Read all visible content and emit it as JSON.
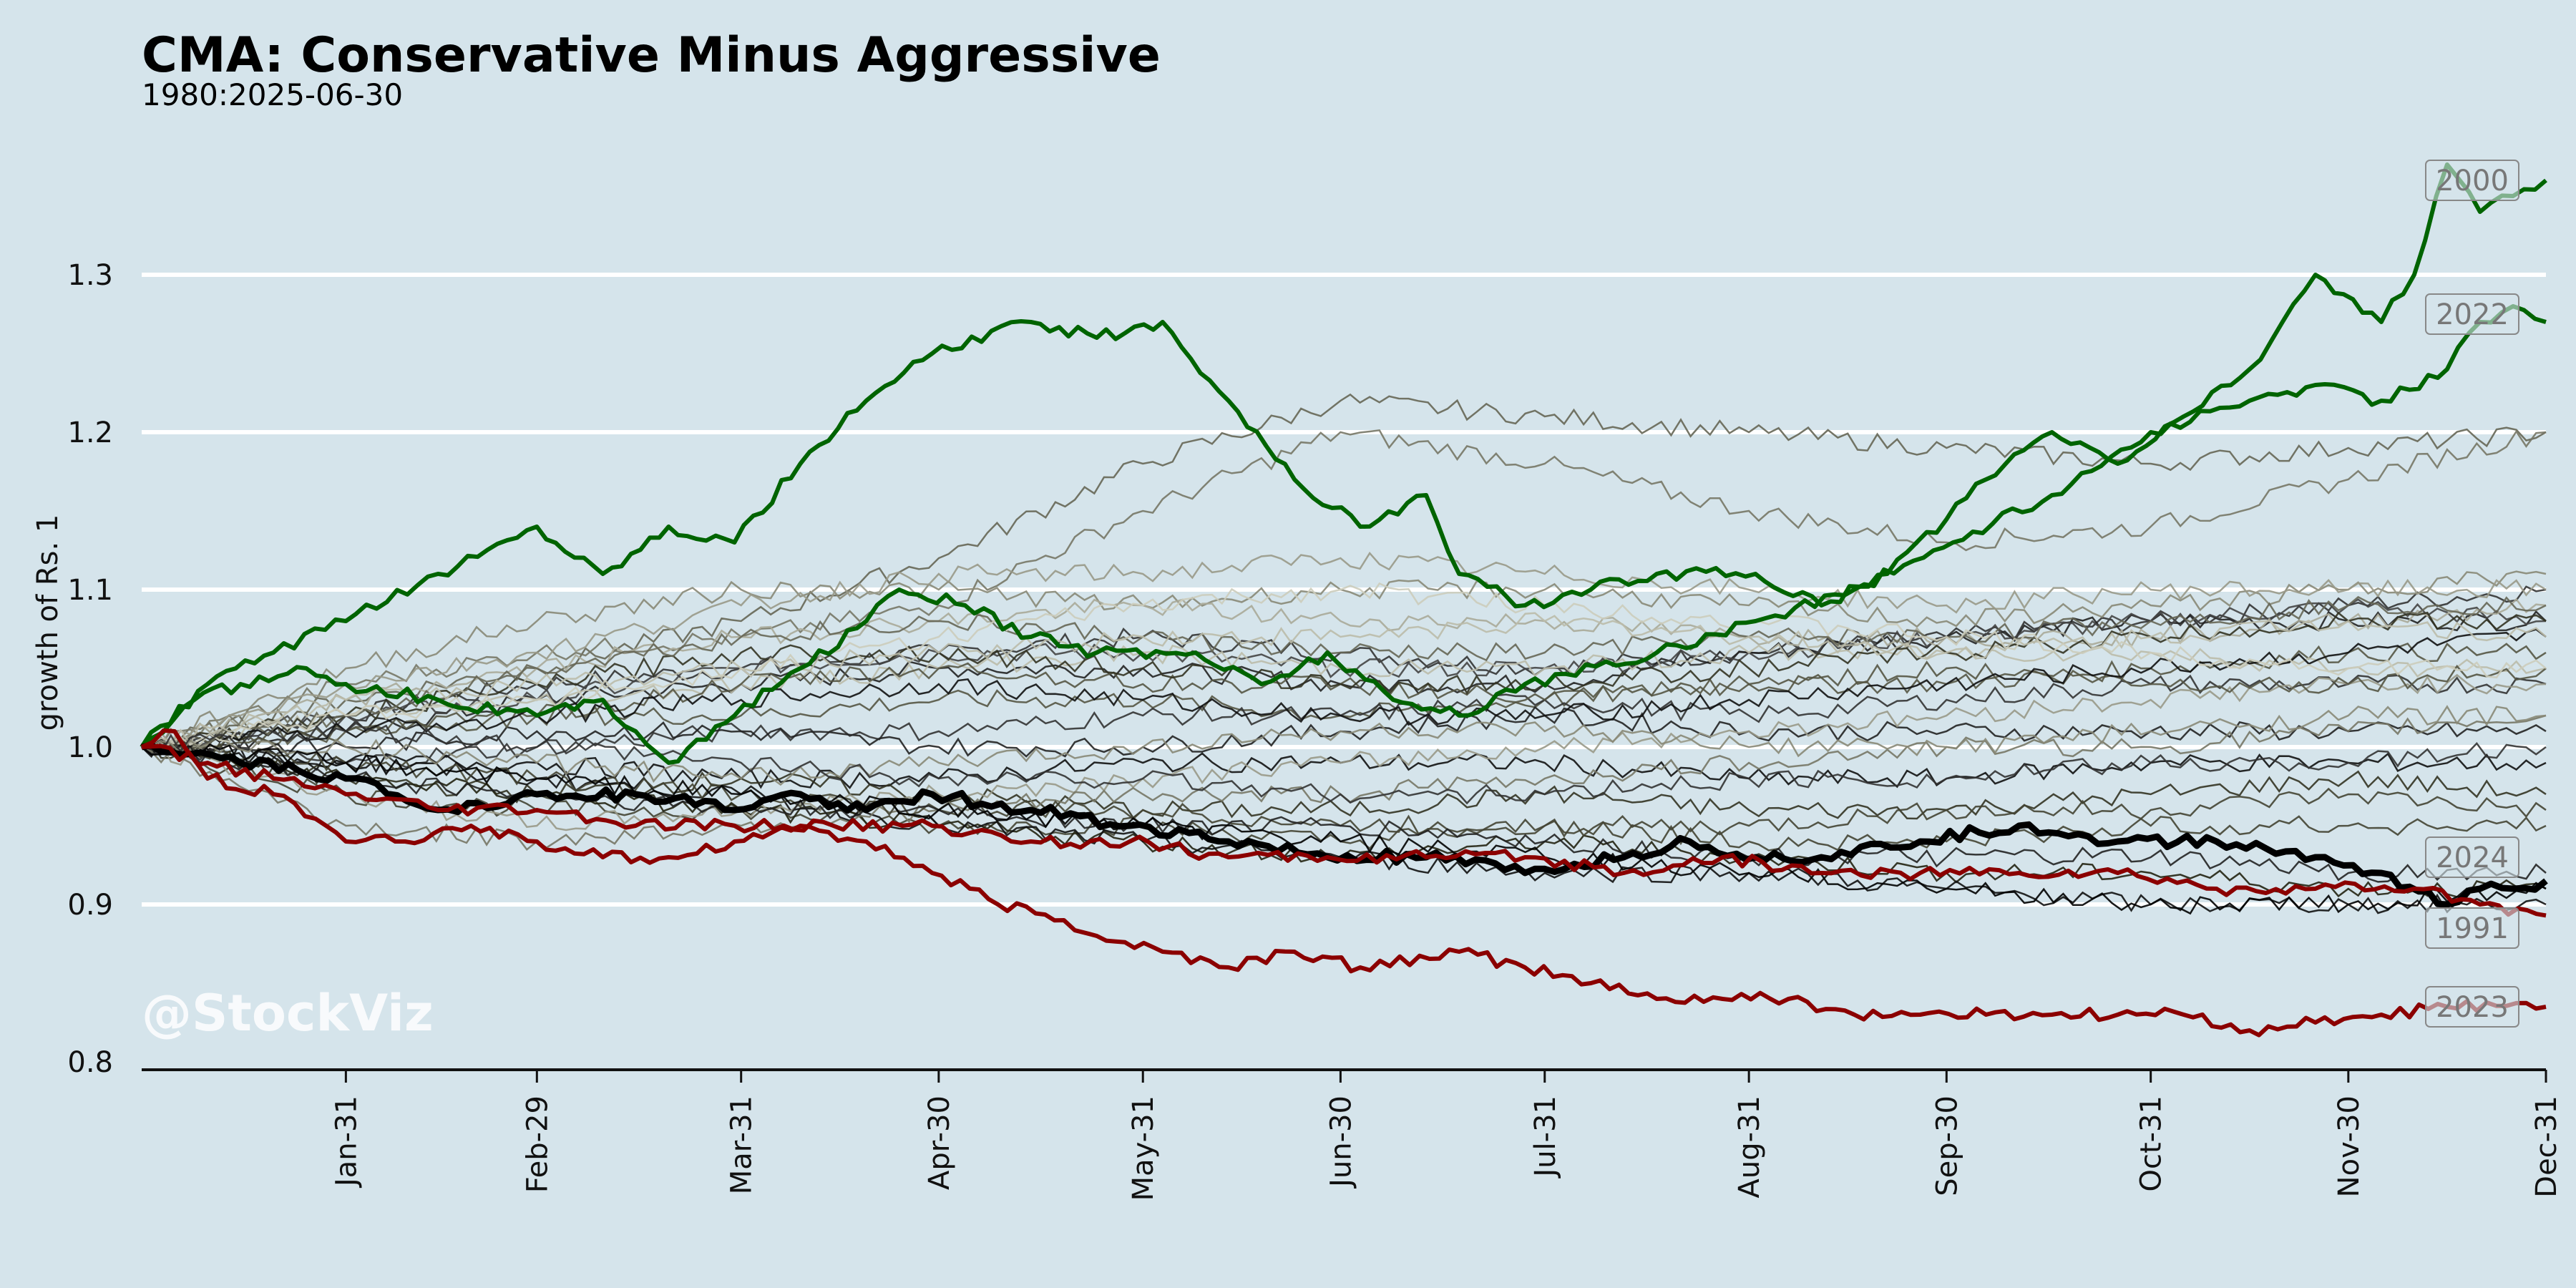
{
  "chart_data": {
    "type": "line",
    "title": "CMA: Conservative Minus Aggressive",
    "subtitle": "1980:2025-06-30",
    "xlabel": "",
    "ylabel": "growth of Rs. 1",
    "x_ticks": [
      "Jan-31",
      "Feb-29",
      "Mar-31",
      "Apr-30",
      "May-31",
      "Jun-30",
      "Jul-31",
      "Aug-31",
      "Sep-30",
      "Oct-31",
      "Nov-30",
      "Dec-31"
    ],
    "y_ticks": [
      "0.8",
      "0.9",
      "1.0",
      "1.1",
      "1.2",
      "1.3"
    ],
    "ylim": [
      0.795,
      1.37
    ],
    "xlim": [
      0,
      365
    ],
    "grid": "horizontal",
    "watermark": "@StockViz",
    "highlighted_series": [
      {
        "name": "2000",
        "color": "#006400",
        "label_y": 1.36,
        "x": [
          0,
          10,
          20,
          31,
          45,
          60,
          70,
          80,
          90,
          100,
          110,
          120,
          135,
          145,
          155,
          165,
          175,
          185,
          195,
          200,
          210,
          220,
          230,
          245,
          255,
          265,
          280,
          290,
          300,
          310,
          320,
          325,
          330,
          340,
          345,
          350,
          355,
          360,
          365
        ],
        "y": [
          1.0,
          1.04,
          1.06,
          1.08,
          1.11,
          1.14,
          1.11,
          1.14,
          1.13,
          1.18,
          1.22,
          1.25,
          1.27,
          1.26,
          1.27,
          1.22,
          1.17,
          1.14,
          1.16,
          1.11,
          1.09,
          1.1,
          1.11,
          1.11,
          1.09,
          1.11,
          1.17,
          1.2,
          1.18,
          1.21,
          1.24,
          1.27,
          1.3,
          1.27,
          1.3,
          1.37,
          1.34,
          1.35,
          1.36
        ]
      },
      {
        "name": "2022",
        "color": "#006400",
        "label_y": 1.275,
        "x": [
          0,
          8,
          15,
          25,
          31,
          45,
          60,
          70,
          75,
          80,
          90,
          100,
          110,
          115,
          125,
          135,
          145,
          160,
          170,
          180,
          190,
          200,
          210,
          230,
          245,
          260,
          275,
          290,
          305,
          320,
          330,
          340,
          350,
          355,
          360,
          365
        ],
        "y": [
          1.0,
          1.03,
          1.04,
          1.05,
          1.04,
          1.03,
          1.02,
          1.03,
          1.01,
          0.99,
          1.02,
          1.05,
          1.08,
          1.1,
          1.09,
          1.07,
          1.06,
          1.06,
          1.04,
          1.06,
          1.03,
          1.02,
          1.04,
          1.06,
          1.08,
          1.1,
          1.13,
          1.16,
          1.2,
          1.22,
          1.23,
          1.22,
          1.24,
          1.27,
          1.28,
          1.27
        ]
      },
      {
        "name": "2024",
        "color": "#000000",
        "label_y": 0.93,
        "x": [
          0,
          15,
          31,
          45,
          60,
          75,
          90,
          100,
          110,
          120,
          135,
          150,
          165,
          180,
          195,
          210,
          225,
          235,
          245,
          255,
          270,
          285,
          300,
          315,
          330,
          340,
          350,
          355,
          360,
          365
        ],
        "y": [
          1.0,
          0.99,
          0.98,
          0.96,
          0.97,
          0.97,
          0.96,
          0.97,
          0.96,
          0.97,
          0.96,
          0.95,
          0.94,
          0.93,
          0.93,
          0.92,
          0.93,
          0.94,
          0.93,
          0.93,
          0.94,
          0.95,
          0.94,
          0.94,
          0.93,
          0.92,
          0.9,
          0.91,
          0.91,
          0.915
        ]
      },
      {
        "name": "1991",
        "color": "#8b0000",
        "label_y": 0.885,
        "x": [
          0,
          10,
          20,
          31,
          45,
          60,
          75,
          90,
          105,
          120,
          135,
          150,
          165,
          180,
          195,
          210,
          225,
          240,
          255,
          270,
          285,
          300,
          315,
          330,
          345,
          355,
          365
        ],
        "y": [
          1.0,
          0.99,
          0.98,
          0.97,
          0.96,
          0.96,
          0.95,
          0.95,
          0.95,
          0.95,
          0.94,
          0.94,
          0.93,
          0.93,
          0.93,
          0.93,
          0.92,
          0.93,
          0.92,
          0.92,
          0.92,
          0.92,
          0.91,
          0.91,
          0.91,
          0.9,
          0.893
        ]
      },
      {
        "name": "2023",
        "color": "#8b0000",
        "label_y": 0.835,
        "x": [
          0,
          5,
          10,
          20,
          28,
          31,
          40,
          50,
          60,
          70,
          80,
          90,
          100,
          110,
          120,
          130,
          140,
          145,
          155,
          165,
          175,
          185,
          200,
          210,
          220,
          230,
          240,
          250,
          260,
          270,
          280,
          290,
          300,
          310,
          320,
          330,
          340,
          350,
          365
        ],
        "y": [
          1.0,
          1.01,
          0.98,
          0.97,
          0.95,
          0.94,
          0.94,
          0.95,
          0.94,
          0.93,
          0.93,
          0.94,
          0.95,
          0.94,
          0.92,
          0.9,
          0.89,
          0.88,
          0.87,
          0.86,
          0.87,
          0.86,
          0.87,
          0.86,
          0.85,
          0.84,
          0.84,
          0.84,
          0.83,
          0.83,
          0.83,
          0.83,
          0.83,
          0.83,
          0.82,
          0.825,
          0.83,
          0.835,
          0.835
        ]
      }
    ],
    "background_series": [
      {
        "color": "#333333",
        "y": [
          1.0,
          1.02,
          1.04,
          1.05,
          1.06,
          1.07,
          1.06,
          1.05,
          1.06,
          1.07,
          1.08,
          1.09,
          1.1
        ]
      },
      {
        "color": "#222222",
        "y": [
          1.0,
          1.01,
          1.03,
          1.04,
          1.05,
          1.05,
          1.04,
          1.04,
          1.06,
          1.07,
          1.08,
          1.08,
          1.08
        ]
      },
      {
        "color": "#444444",
        "y": [
          1.0,
          1.02,
          1.03,
          1.05,
          1.06,
          1.06,
          1.05,
          1.05,
          1.06,
          1.07,
          1.08,
          1.09,
          1.08
        ]
      },
      {
        "color": "#666655",
        "y": [
          1.0,
          1.03,
          1.05,
          1.08,
          1.12,
          1.18,
          1.22,
          1.21,
          1.2,
          1.19,
          1.18,
          1.19,
          1.2
        ]
      },
      {
        "color": "#777766",
        "y": [
          1.0,
          1.04,
          1.06,
          1.07,
          1.09,
          1.15,
          1.2,
          1.18,
          1.15,
          1.13,
          1.14,
          1.17,
          1.2
        ]
      },
      {
        "color": "#555544",
        "y": [
          1.0,
          1.01,
          1.02,
          1.02,
          1.03,
          1.03,
          1.02,
          1.03,
          1.04,
          1.04,
          1.05,
          1.06,
          1.06
        ]
      },
      {
        "color": "#333333",
        "y": [
          1.0,
          0.99,
          1.0,
          1.01,
          1.01,
          1.02,
          1.02,
          1.03,
          1.02,
          1.03,
          1.04,
          1.04,
          1.04
        ]
      },
      {
        "color": "#222222",
        "y": [
          1.0,
          1.0,
          1.01,
          1.01,
          1.0,
          1.0,
          1.01,
          1.02,
          1.01,
          1.01,
          1.01,
          1.01,
          1.01
        ]
      },
      {
        "color": "#111111",
        "y": [
          1.0,
          0.99,
          0.99,
          0.98,
          0.98,
          0.99,
          0.99,
          0.99,
          0.98,
          0.98,
          0.99,
          0.99,
          0.99
        ]
      },
      {
        "color": "#333322",
        "y": [
          1.0,
          0.98,
          0.97,
          0.98,
          0.97,
          0.96,
          0.96,
          0.97,
          0.96,
          0.96,
          0.97,
          0.98,
          0.97
        ]
      },
      {
        "color": "#444433",
        "y": [
          1.0,
          0.97,
          0.96,
          0.96,
          0.95,
          0.95,
          0.94,
          0.95,
          0.95,
          0.96,
          0.96,
          0.97,
          0.96
        ]
      },
      {
        "color": "#222211",
        "y": [
          1.0,
          0.98,
          0.97,
          0.96,
          0.95,
          0.94,
          0.93,
          0.94,
          0.93,
          0.92,
          0.92,
          0.91,
          0.91
        ]
      },
      {
        "color": "#111111",
        "y": [
          1.0,
          0.99,
          0.98,
          0.97,
          0.95,
          0.94,
          0.93,
          0.92,
          0.92,
          0.91,
          0.9,
          0.9,
          0.9
        ]
      },
      {
        "color": "#888877",
        "y": [
          1.0,
          1.05,
          1.08,
          1.1,
          1.1,
          1.09,
          1.1,
          1.1,
          1.09,
          1.08,
          1.09,
          1.1,
          1.11
        ]
      },
      {
        "color": "#999988",
        "y": [
          1.0,
          1.04,
          1.06,
          1.09,
          1.11,
          1.11,
          1.12,
          1.11,
          1.1,
          1.09,
          1.1,
          1.1,
          1.1
        ]
      },
      {
        "color": "#aaaa99",
        "y": [
          1.0,
          1.03,
          1.05,
          1.07,
          1.08,
          1.09,
          1.08,
          1.08,
          1.07,
          1.07,
          1.07,
          1.08,
          1.09
        ]
      },
      {
        "color": "#bbbbaa",
        "y": [
          1.0,
          1.02,
          1.03,
          1.04,
          1.05,
          1.06,
          1.05,
          1.05,
          1.06,
          1.06,
          1.06,
          1.05,
          1.05
        ]
      },
      {
        "color": "#999988",
        "y": [
          1.0,
          0.97,
          0.95,
          0.96,
          0.97,
          0.98,
          0.99,
          1.0,
          1.01,
          1.02,
          1.03,
          1.04,
          1.04
        ]
      },
      {
        "color": "#777766",
        "y": [
          1.0,
          0.95,
          0.94,
          0.95,
          0.96,
          0.97,
          0.97,
          0.98,
          0.99,
          1.0,
          1.0,
          1.01,
          1.02
        ]
      },
      {
        "color": "#555544",
        "y": [
          1.0,
          1.01,
          1.02,
          1.04,
          1.05,
          1.04,
          1.04,
          1.03,
          1.04,
          1.05,
          1.04,
          1.04,
          1.05
        ]
      },
      {
        "color": "#333322",
        "y": [
          1.0,
          1.02,
          1.04,
          1.06,
          1.06,
          1.05,
          1.04,
          1.04,
          1.05,
          1.06,
          1.07,
          1.08,
          1.08
        ]
      },
      {
        "color": "#444433",
        "y": [
          1.0,
          0.99,
          0.98,
          0.97,
          0.96,
          0.96,
          0.95,
          0.95,
          0.94,
          0.94,
          0.95,
          0.95,
          0.95
        ]
      },
      {
        "color": "#222222",
        "y": [
          1.0,
          0.98,
          0.97,
          0.96,
          0.96,
          0.95,
          0.95,
          0.94,
          0.93,
          0.93,
          0.93,
          0.92,
          0.92
        ]
      },
      {
        "color": "#111111",
        "y": [
          1.0,
          1.01,
          1.02,
          1.03,
          1.04,
          1.03,
          1.02,
          1.02,
          1.03,
          1.04,
          1.05,
          1.06,
          1.07
        ]
      },
      {
        "color": "#666655",
        "y": [
          1.0,
          1.02,
          1.05,
          1.07,
          1.08,
          1.07,
          1.06,
          1.06,
          1.07,
          1.07,
          1.08,
          1.09,
          1.09
        ]
      },
      {
        "color": "#bbbbaa",
        "y": [
          1.0,
          1.03,
          1.04,
          1.05,
          1.06,
          1.07,
          1.07,
          1.08,
          1.07,
          1.06,
          1.07,
          1.08,
          1.07
        ]
      },
      {
        "color": "#ccccbb",
        "y": [
          1.0,
          1.02,
          1.03,
          1.05,
          1.07,
          1.09,
          1.1,
          1.09,
          1.08,
          1.07,
          1.06,
          1.05,
          1.05
        ]
      },
      {
        "color": "#888877",
        "y": [
          1.0,
          1.0,
          0.99,
          0.98,
          0.99,
          1.0,
          1.01,
          1.01,
          1.0,
          1.0,
          1.01,
          1.02,
          1.02
        ]
      },
      {
        "color": "#333333",
        "y": [
          1.0,
          1.01,
          1.0,
          0.99,
          0.98,
          0.98,
          0.97,
          0.97,
          0.98,
          0.98,
          0.99,
          0.99,
          1.0
        ]
      },
      {
        "color": "#000000",
        "y": [
          1.0,
          0.99,
          0.98,
          0.97,
          0.96,
          0.95,
          0.94,
          0.93,
          0.92,
          0.91,
          0.9,
          0.9,
          0.91
        ]
      }
    ]
  }
}
